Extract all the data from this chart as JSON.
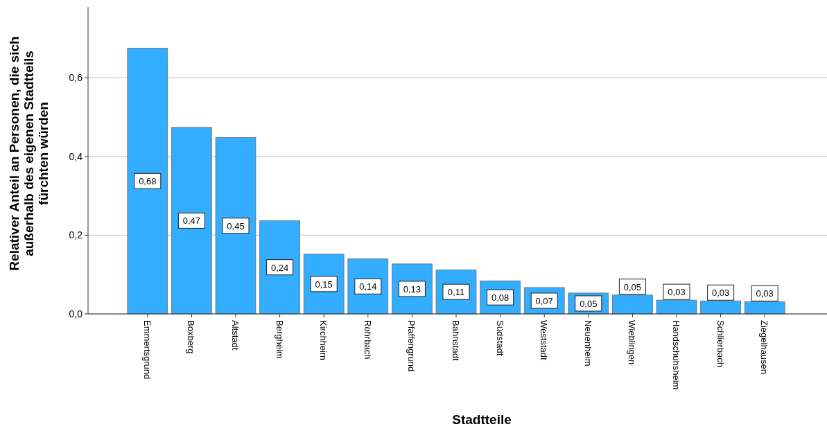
{
  "chart_data": {
    "type": "bar",
    "xlabel": "Stadtteile",
    "ylabel": "Relativer Anteil an Personen, die sich\naußerhalb des eigenen Stadtteils\nfürchten würden",
    "categories": [
      "Emmertsgrund",
      "Boxberg",
      "Altstadt",
      "Bergheim",
      "Kirchheim",
      "Rohrbach",
      "Pfaffengrund",
      "Bahnstadt",
      "Südstadt",
      "Weststadt",
      "Neuenheim",
      "Wieblingen",
      "Handschuhsheim",
      "Schlierbach",
      "Ziegelhausen"
    ],
    "values": [
      0.675,
      0.474,
      0.448,
      0.237,
      0.152,
      0.14,
      0.127,
      0.112,
      0.084,
      0.067,
      0.053,
      0.048,
      0.035,
      0.033,
      0.031
    ],
    "value_labels": [
      "0,68",
      "0,47",
      "0,45",
      "0,24",
      "0,15",
      "0,14",
      "0,13",
      "0,11",
      "0,08",
      "0,07",
      "0,05",
      "0,05",
      "0,03",
      "0,03",
      "0,03"
    ],
    "color": "#33adff",
    "ylim": [
      0,
      0.78
    ],
    "yticks": [
      {
        "value": 0,
        "label": "0,0"
      },
      {
        "value": 0.2,
        "label": "0,2"
      },
      {
        "value": 0.4,
        "label": "0,4"
      },
      {
        "value": 0.6,
        "label": "0,6"
      }
    ],
    "grid": "y"
  }
}
